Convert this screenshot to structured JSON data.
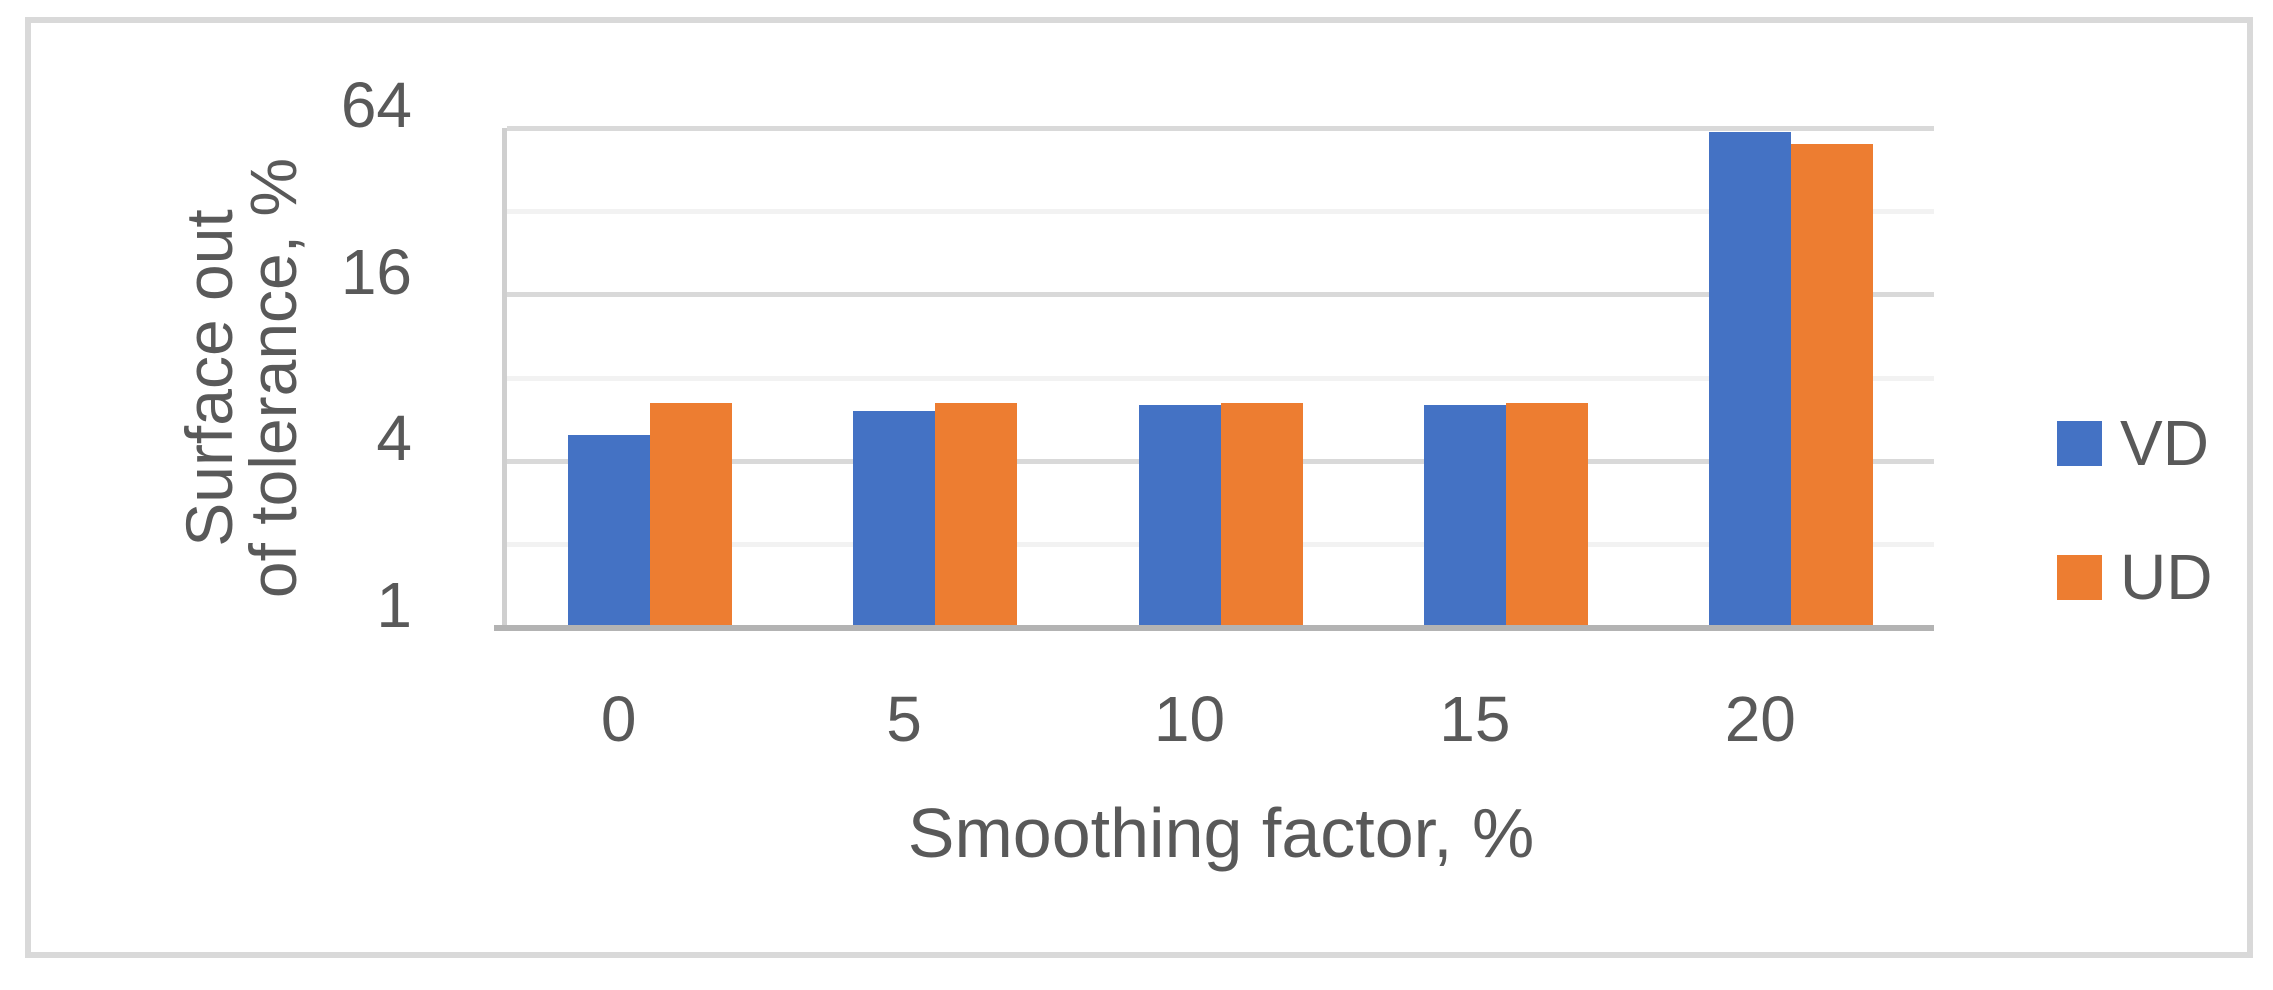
{
  "chart_data": {
    "type": "bar",
    "title": "",
    "categories": [
      "0",
      "5",
      "10",
      "15",
      "20"
    ],
    "series": [
      {
        "name": "VD",
        "color": "#4472C4",
        "values": [
          5.0,
          6.1,
          6.4,
          6.4,
          62
        ]
      },
      {
        "name": "UD",
        "color": "#ED7D31",
        "values": [
          6.5,
          6.5,
          6.5,
          6.5,
          56
        ]
      }
    ],
    "xlabel": "Smoothing factor, %",
    "ylabel": "Surface out of tolerance, %",
    "ylabel_lines": [
      "Surface out",
      "of tolerance, %"
    ],
    "y_scale": "log2",
    "ylim": [
      1,
      64
    ],
    "y_major_ticks": [
      1,
      4,
      16,
      64
    ],
    "y_minor_ticks": [
      2,
      8,
      32
    ],
    "grid": true,
    "legend_position": "right"
  },
  "colors": {
    "text": "#595959",
    "major_grid": "#D9D9D9",
    "minor_grid": "#F2F2F2",
    "y_axis_line": "#CFCFCF",
    "x_axis_line": "#B3B3B3",
    "frame_border": "#D9D9D9",
    "background": "#ffffff"
  },
  "legend": {
    "items": [
      {
        "label": "VD",
        "color": "#4472C4"
      },
      {
        "label": "UD",
        "color": "#ED7D31"
      }
    ]
  }
}
